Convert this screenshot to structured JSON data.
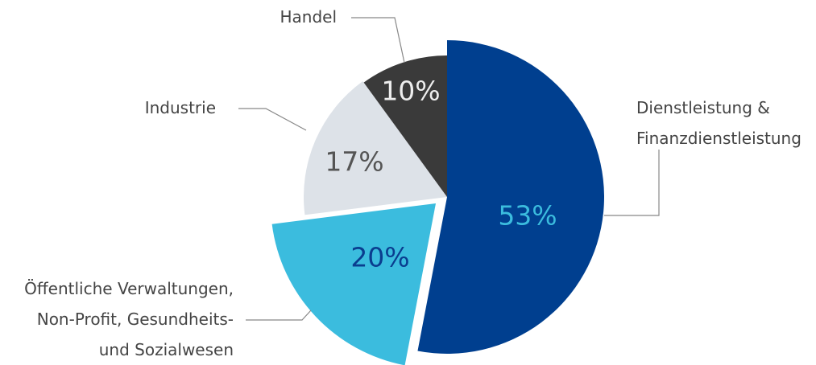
{
  "chart_data": {
    "type": "pie",
    "categories": [
      "Dienstleistung &\nFinanzdienstleistung",
      "Öffentliche Verwaltungen,\nNon-Profit, Gesundheits-\nund Sozialwesen",
      "Industrie",
      "Handel"
    ],
    "values": [
      53,
      20,
      17,
      10
    ],
    "value_labels": [
      "53%",
      "20%",
      "17%",
      "10%"
    ],
    "colors": [
      "#003f8f",
      "#3bbcde",
      "#dde2e8",
      "#3a3a3a"
    ]
  }
}
